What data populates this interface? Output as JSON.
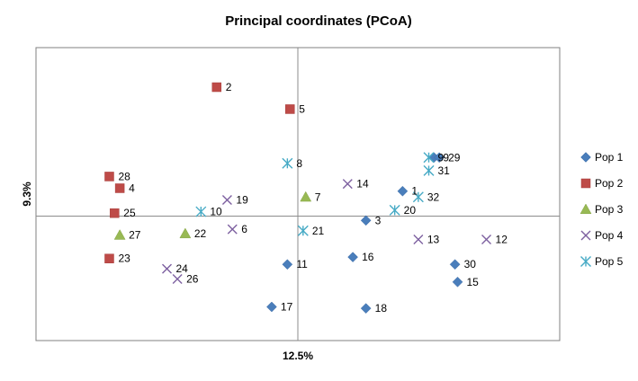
{
  "chart_data": {
    "type": "scatter",
    "title": "Principal coordinates (PCoA)",
    "xlabel": "12.5%",
    "ylabel": "9.3%",
    "xlim": [
      -1.0,
      1.0
    ],
    "ylim": [
      -0.85,
      1.15
    ],
    "grid": false,
    "legend_position": "right",
    "series": [
      {
        "name": "Pop 1",
        "marker": "diamond",
        "color": "#4a7ebb",
        "points": [
          {
            "label": "1",
            "x": 0.4,
            "y": 0.17
          },
          {
            "label": "3",
            "x": 0.26,
            "y": -0.03
          },
          {
            "label": "9",
            "x": 0.52,
            "y": 0.4
          },
          {
            "label": "11",
            "x": -0.04,
            "y": -0.33
          },
          {
            "label": "15",
            "x": 0.61,
            "y": -0.45
          },
          {
            "label": "16",
            "x": 0.21,
            "y": -0.28
          },
          {
            "label": "17",
            "x": -0.1,
            "y": -0.62
          },
          {
            "label": "18",
            "x": 0.26,
            "y": -0.63
          },
          {
            "label": "29",
            "x": 0.54,
            "y": 0.4
          },
          {
            "label": "30",
            "x": 0.6,
            "y": -0.33
          }
        ]
      },
      {
        "name": "Pop 2",
        "marker": "square",
        "color": "#be4b48",
        "points": [
          {
            "label": "2",
            "x": -0.31,
            "y": 0.88
          },
          {
            "label": "4",
            "x": -0.68,
            "y": 0.19
          },
          {
            "label": "5",
            "x": -0.03,
            "y": 0.73
          },
          {
            "label": "23",
            "x": -0.72,
            "y": -0.29
          },
          {
            "label": "25",
            "x": -0.7,
            "y": 0.02
          },
          {
            "label": "28",
            "x": -0.72,
            "y": 0.27
          }
        ]
      },
      {
        "name": "Pop 3",
        "marker": "triangle",
        "color": "#98b954",
        "points": [
          {
            "label": "7",
            "x": 0.03,
            "y": 0.13
          },
          {
            "label": "22",
            "x": -0.43,
            "y": -0.12
          },
          {
            "label": "27",
            "x": -0.68,
            "y": -0.13
          }
        ]
      },
      {
        "name": "Pop 4",
        "marker": "x",
        "color": "#7d60a0",
        "points": [
          {
            "label": "6",
            "x": -0.25,
            "y": -0.09
          },
          {
            "label": "12",
            "x": 0.72,
            "y": -0.16
          },
          {
            "label": "13",
            "x": 0.46,
            "y": -0.16
          },
          {
            "label": "14",
            "x": 0.19,
            "y": 0.22
          },
          {
            "label": "19",
            "x": -0.27,
            "y": 0.11
          },
          {
            "label": "24",
            "x": -0.5,
            "y": -0.36
          },
          {
            "label": "26",
            "x": -0.46,
            "y": -0.43
          }
        ]
      },
      {
        "name": "Pop 5",
        "marker": "asterisk",
        "color": "#46aac5",
        "points": [
          {
            "label": "8",
            "x": -0.04,
            "y": 0.36
          },
          {
            "label": "10",
            "x": -0.37,
            "y": 0.03
          },
          {
            "label": "20",
            "x": 0.37,
            "y": 0.04
          },
          {
            "label": "21",
            "x": 0.02,
            "y": -0.1
          },
          {
            "label": "31",
            "x": 0.5,
            "y": 0.31
          },
          {
            "label": "32",
            "x": 0.46,
            "y": 0.13
          },
          {
            "label": "9",
            "x": 0.5,
            "y": 0.4
          }
        ]
      }
    ]
  }
}
